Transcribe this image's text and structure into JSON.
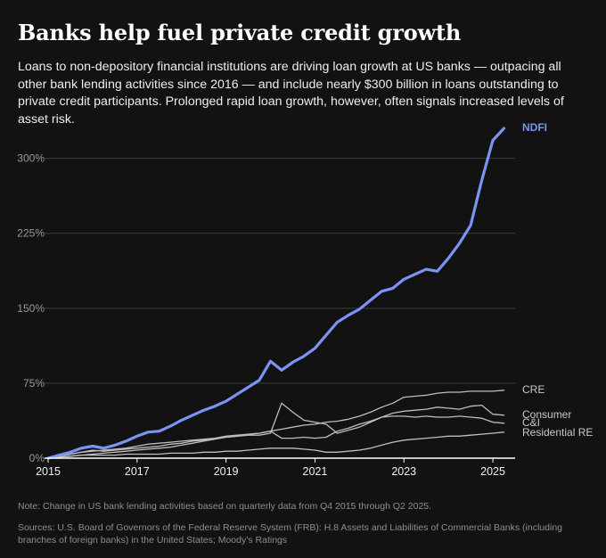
{
  "title": "Banks help fuel private credit growth",
  "subtitle": "Loans to non-depository financial institutions are driving loan growth at US banks — outpacing all other bank lending activities since 2016 — and include nearly $300 billion in loans outstanding to private credit participants. Prolonged rapid loan growth, however, often signals increased levels of asset risk.",
  "note": "Note: Change in US bank lending activities based on quarterly data from Q4 2015 through Q2 2025.",
  "sources": "Sources: U.S. Board of Governors of the Federal Reserve System (FRB): H.8 Assets and Liabilities of Commercial Banks (including branches of foreign banks) in the United States; Moody’s Ratings",
  "colors": {
    "highlight": "#7b93f5",
    "other": "#bdbdbd",
    "grid": "#3c3c3c",
    "tick": "#9a9a9a"
  },
  "chart_data": {
    "type": "line",
    "xlim": [
      2015,
      2025.5
    ],
    "ylim": [
      0,
      330
    ],
    "y_ticks": [
      0,
      75,
      150,
      225,
      300
    ],
    "y_tick_labels": [
      "0%",
      "75%",
      "150%",
      "225%",
      "300%"
    ],
    "x_ticks": [
      2015,
      2017,
      2019,
      2021,
      2023,
      2025
    ],
    "x_tick_labels": [
      "2015",
      "2017",
      "2019",
      "2021",
      "2023",
      "2025"
    ],
    "x": [
      2015.0,
      2015.25,
      2015.5,
      2015.75,
      2016.0,
      2016.25,
      2016.5,
      2016.75,
      2017.0,
      2017.25,
      2017.5,
      2017.75,
      2018.0,
      2018.25,
      2018.5,
      2018.75,
      2019.0,
      2019.25,
      2019.5,
      2019.75,
      2020.0,
      2020.25,
      2020.5,
      2020.75,
      2021.0,
      2021.25,
      2021.5,
      2021.75,
      2022.0,
      2022.25,
      2022.5,
      2022.75,
      2023.0,
      2023.25,
      2023.5,
      2023.75,
      2024.0,
      2024.25,
      2024.5,
      2024.75,
      2025.0,
      2025.25
    ],
    "series": [
      {
        "name": "NDFI",
        "highlight": true,
        "values": [
          0,
          3,
          6,
          10,
          12,
          10,
          13,
          17,
          22,
          26,
          27,
          32,
          38,
          43,
          48,
          52,
          57,
          64,
          71,
          78,
          97,
          88,
          96,
          102,
          110,
          123,
          136,
          143,
          149,
          158,
          167,
          170,
          179,
          184,
          189,
          187,
          200,
          215,
          233,
          278,
          318,
          330
        ]
      },
      {
        "name": "CRE",
        "highlight": false,
        "values": [
          0,
          2,
          4,
          6,
          7,
          8,
          9,
          10,
          12,
          14,
          15,
          16,
          17,
          18,
          19,
          20,
          22,
          23,
          24,
          25,
          27,
          29,
          31,
          33,
          34,
          36,
          37,
          39,
          42,
          46,
          51,
          55,
          61,
          62,
          63,
          65,
          66,
          66,
          67,
          67,
          67,
          68
        ]
      },
      {
        "name": "Consumer",
        "highlight": false,
        "values": [
          0,
          1,
          2,
          3,
          4,
          5,
          6,
          7,
          8,
          9,
          10,
          11,
          13,
          15,
          17,
          19,
          21,
          22,
          23,
          23,
          25,
          55,
          46,
          38,
          36,
          34,
          25,
          28,
          31,
          36,
          41,
          45,
          47,
          48,
          49,
          51,
          50,
          49,
          52,
          53,
          44,
          43
        ]
      },
      {
        "name": "C&I",
        "highlight": false,
        "values": [
          0,
          2,
          4,
          6,
          8,
          7,
          8,
          9,
          10,
          11,
          12,
          14,
          15,
          17,
          18,
          20,
          21,
          22,
          24,
          25,
          27,
          20,
          20,
          21,
          20,
          21,
          27,
          30,
          34,
          37,
          41,
          42,
          42,
          41,
          42,
          41,
          41,
          42,
          41,
          40,
          36,
          35
        ]
      },
      {
        "name": "Residential RE",
        "highlight": false,
        "values": [
          0,
          1,
          2,
          3,
          3,
          3,
          3,
          4,
          4,
          4,
          4,
          5,
          5,
          5,
          6,
          6,
          7,
          7,
          8,
          9,
          10,
          10,
          10,
          9,
          8,
          6,
          6,
          7,
          8,
          10,
          13,
          16,
          18,
          19,
          20,
          21,
          22,
          22,
          23,
          24,
          25,
          26
        ]
      }
    ],
    "series_labels": [
      "NDFI",
      "CRE",
      "Consumer",
      "C&I",
      "Residential RE"
    ]
  }
}
